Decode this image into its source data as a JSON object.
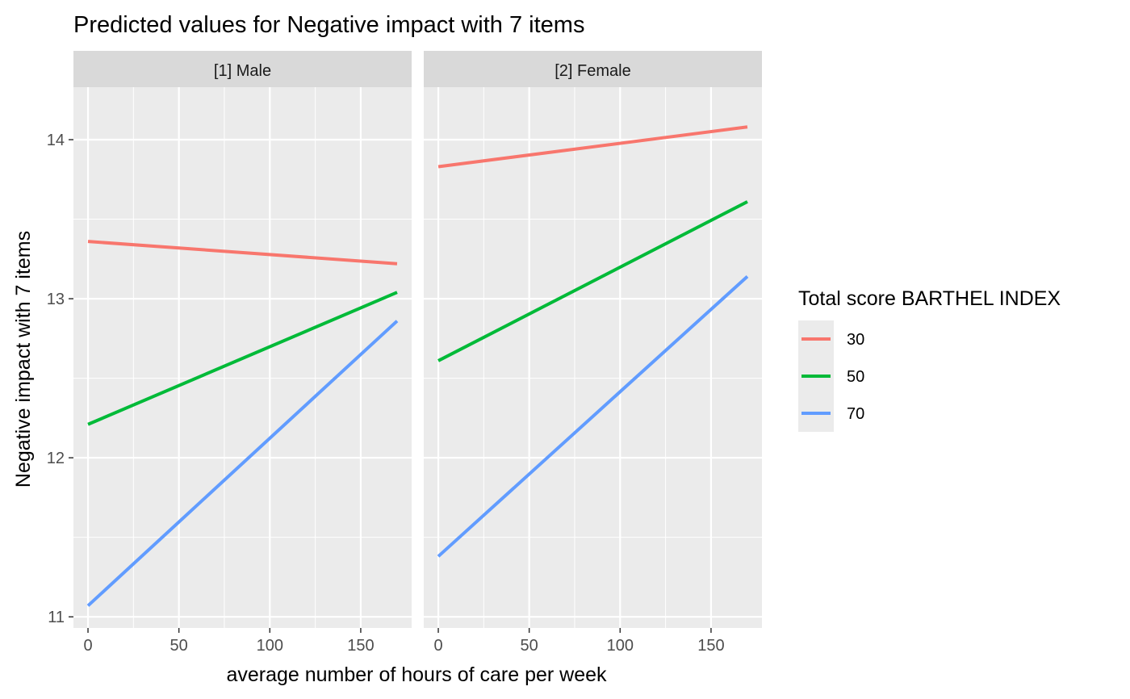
{
  "chart_data": {
    "type": "line",
    "title": "Predicted values for Negative impact with 7 items",
    "xlabel": "average number of hours of care per week",
    "ylabel": "Negative impact with 7 items",
    "xlim": [
      -8,
      178
    ],
    "ylim": [
      10.93,
      14.33
    ],
    "x_ticks": [
      0,
      50,
      100,
      150
    ],
    "y_ticks": [
      11,
      12,
      13,
      14
    ],
    "grid": true,
    "legend": {
      "title": "Total score BARTHEL INDEX",
      "placement": "right",
      "entries": [
        "30",
        "50",
        "70"
      ]
    },
    "colors": {
      "30": "#F8766D",
      "50": "#00BA38",
      "70": "#619CFF"
    },
    "panels": [
      {
        "label": "[1] Male",
        "series": [
          {
            "name": "30",
            "x": [
              0,
              170
            ],
            "y": [
              13.36,
              13.22
            ]
          },
          {
            "name": "50",
            "x": [
              0,
              170
            ],
            "y": [
              12.21,
              13.04
            ]
          },
          {
            "name": "70",
            "x": [
              0,
              170
            ],
            "y": [
              11.07,
              12.86
            ]
          }
        ]
      },
      {
        "label": "[2] Female",
        "series": [
          {
            "name": "30",
            "x": [
              0,
              170
            ],
            "y": [
              13.83,
              14.08
            ]
          },
          {
            "name": "50",
            "x": [
              0,
              170
            ],
            "y": [
              12.61,
              13.61
            ]
          },
          {
            "name": "70",
            "x": [
              0,
              170
            ],
            "y": [
              11.38,
              13.14
            ]
          }
        ]
      }
    ]
  }
}
